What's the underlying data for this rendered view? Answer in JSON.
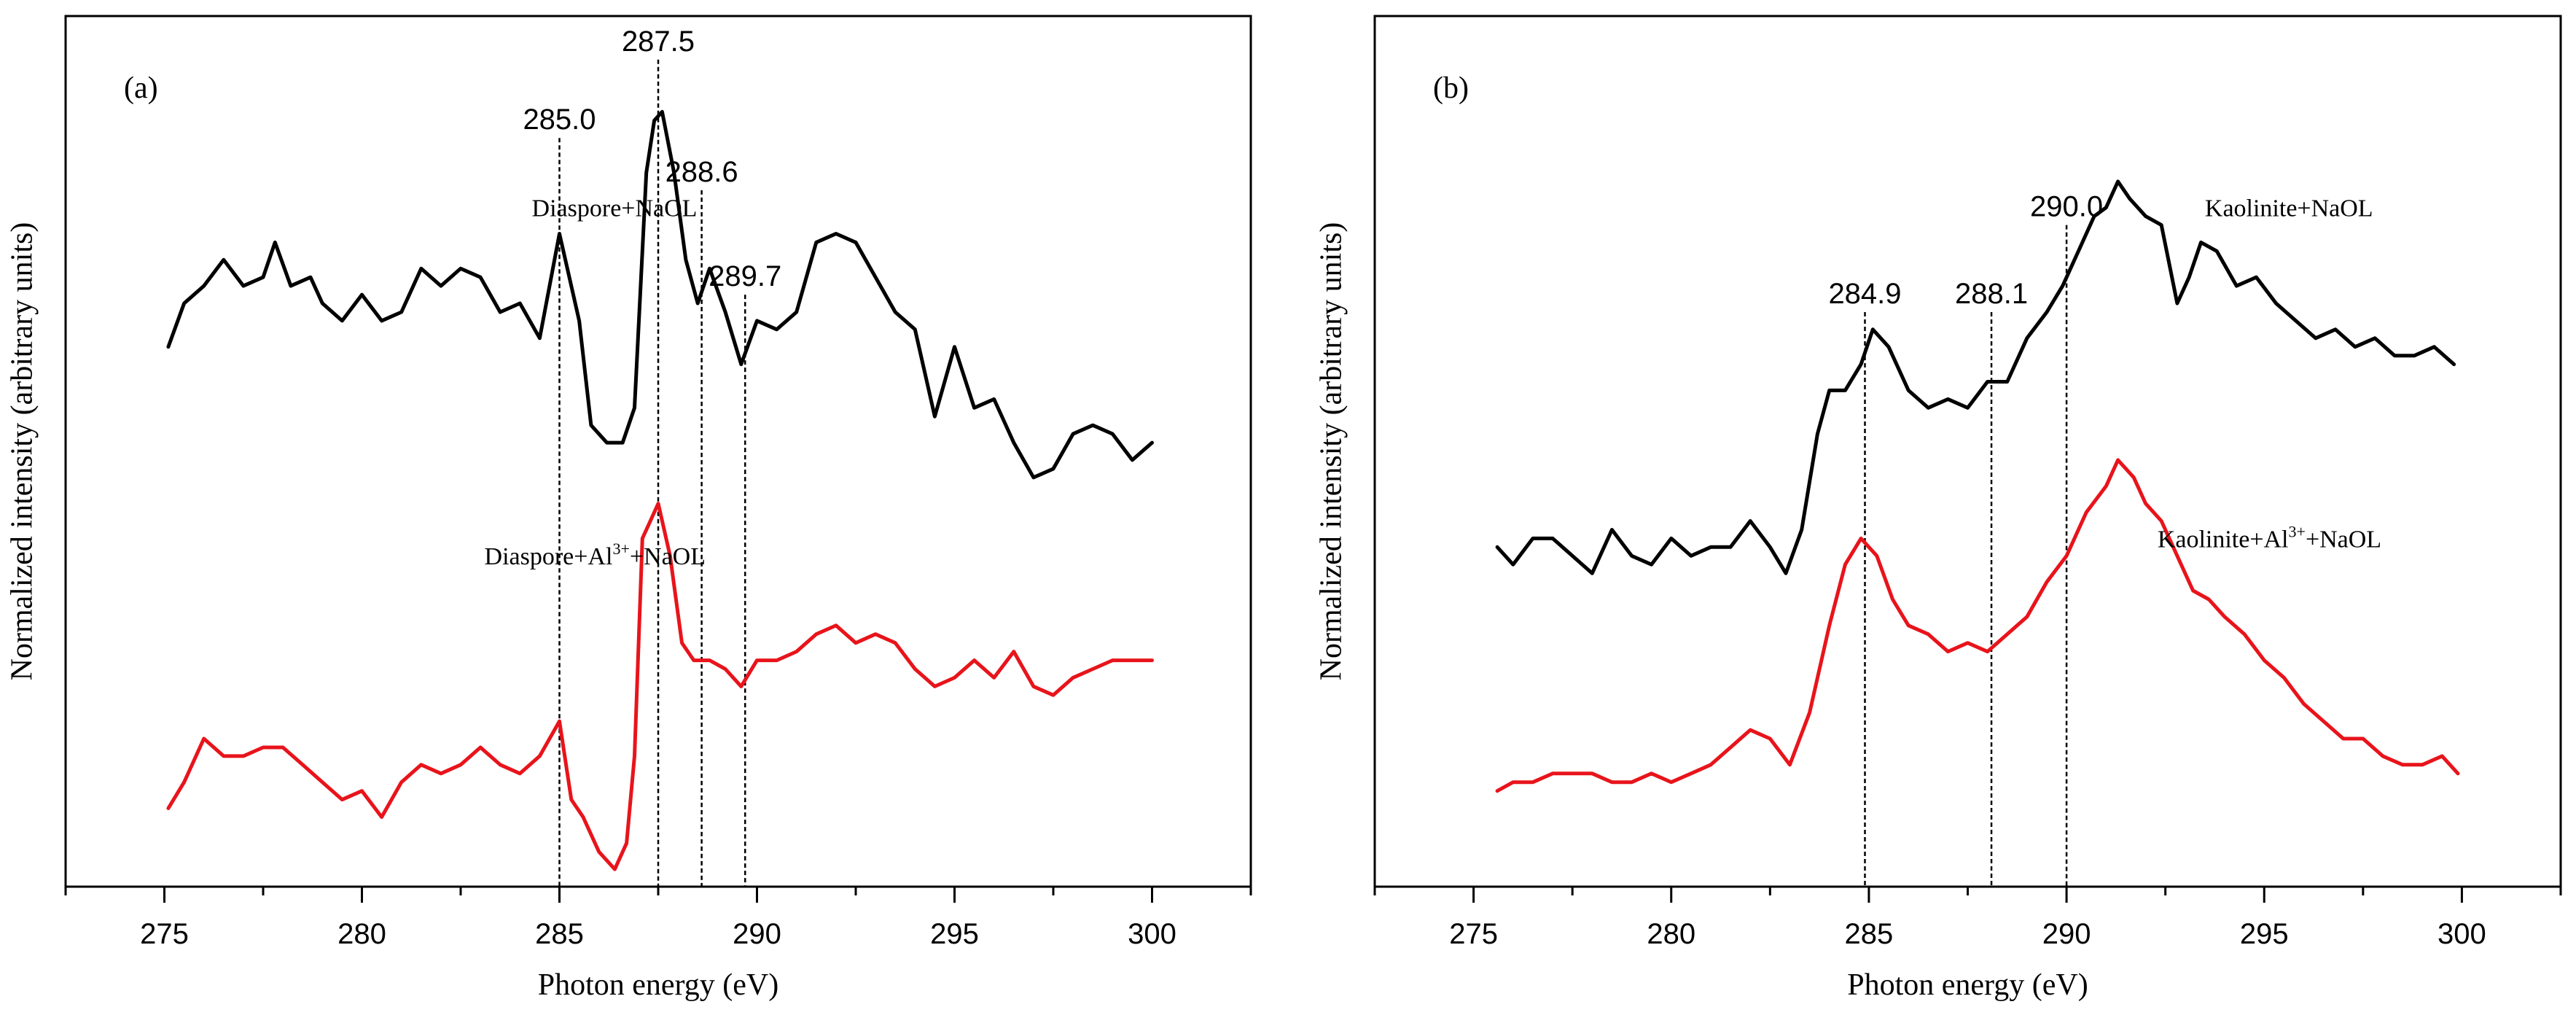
{
  "colors": {
    "black_series": "#000000",
    "red_series": "#e8141b"
  },
  "chart_data": [
    {
      "type": "line",
      "panel_label": "(a)",
      "xlabel": "Photon energy (eV)",
      "ylabel": "Normalized intensity (arbitrary units)",
      "xlim": [
        272.5,
        302.5
      ],
      "ylim": [
        0,
        100
      ],
      "x_ticks": [
        275,
        280,
        285,
        290,
        295,
        300
      ],
      "x_tick_labels": [
        "275",
        "280",
        "285",
        "290",
        "295",
        "300"
      ],
      "y_ticks_shown": false,
      "peaks": [
        {
          "x": 285.0,
          "label": "285.0",
          "label_y": 87
        },
        {
          "x": 287.5,
          "label": "287.5",
          "label_y": 96
        },
        {
          "x": 288.6,
          "label": "288.6",
          "label_y": 81
        },
        {
          "x": 289.7,
          "label": "289.7",
          "label_y": 69
        }
      ],
      "series": [
        {
          "name": "Diaspore+NaOL",
          "label_base": "Diaspore+NaOL",
          "label_sup": "",
          "label_tail": "",
          "label_pos": [
            284.3,
            77
          ],
          "color": "#000000",
          "x": [
            275.1,
            275.5,
            276,
            276.5,
            277,
            277.5,
            277.8,
            278.2,
            278.7,
            279,
            279.5,
            280,
            280.5,
            281,
            281.5,
            282,
            282.5,
            283,
            283.5,
            284,
            284.5,
            285,
            285.5,
            285.8,
            286.2,
            286.6,
            286.9,
            287.2,
            287.4,
            287.6,
            287.9,
            288.2,
            288.5,
            288.8,
            289.2,
            289.6,
            290,
            290.5,
            291,
            291.5,
            292,
            292.5,
            293,
            293.5,
            294,
            294.5,
            295,
            295.5,
            296,
            296.5,
            297,
            297.5,
            298,
            298.5,
            299,
            299.5,
            300
          ],
          "y": [
            62,
            67,
            69,
            72,
            69,
            70,
            74,
            69,
            70,
            67,
            65,
            68,
            65,
            66,
            71,
            69,
            71,
            70,
            66,
            67,
            63,
            75,
            65,
            53,
            51,
            51,
            55,
            82,
            88,
            89,
            82,
            72,
            67,
            71,
            66,
            60,
            65,
            64,
            66,
            74,
            75,
            74,
            70,
            66,
            64,
            54,
            62,
            55,
            56,
            51,
            47,
            48,
            52,
            53,
            52,
            49,
            51
          ]
        },
        {
          "name": "Diaspore+Al3+NaOL",
          "label_base": "Diaspore+Al",
          "label_sup": "3+",
          "label_tail": "+NaOL",
          "label_pos": [
            283.1,
            37
          ],
          "color": "#e8141b",
          "x": [
            275.1,
            275.5,
            276,
            276.5,
            277,
            277.5,
            278,
            278.5,
            279,
            279.5,
            280,
            280.5,
            281,
            281.5,
            282,
            282.5,
            283,
            283.5,
            284,
            284.5,
            285,
            285.3,
            285.6,
            286,
            286.4,
            286.7,
            286.9,
            287.1,
            287.3,
            287.5,
            287.8,
            288.1,
            288.4,
            288.8,
            289.2,
            289.6,
            290,
            290.5,
            291,
            291.5,
            292,
            292.5,
            293,
            293.5,
            294,
            294.5,
            295,
            295.5,
            296,
            296.5,
            297,
            297.5,
            298,
            298.5,
            299,
            299.5,
            300
          ],
          "y": [
            9,
            12,
            17,
            15,
            15,
            16,
            16,
            14,
            12,
            10,
            11,
            8,
            12,
            14,
            13,
            14,
            16,
            14,
            13,
            15,
            19,
            10,
            8,
            4,
            2,
            5,
            15,
            40,
            42,
            44,
            38,
            28,
            26,
            26,
            25,
            23,
            26,
            26,
            27,
            29,
            30,
            28,
            29,
            28,
            25,
            23,
            24,
            26,
            24,
            27,
            23,
            22,
            24,
            25,
            26,
            26,
            26
          ]
        }
      ]
    },
    {
      "type": "line",
      "panel_label": "(b)",
      "xlabel": "Photon energy (eV)",
      "ylabel": "Normalized intensity (arbitrary units)",
      "xlim": [
        272.5,
        302.5
      ],
      "ylim": [
        0,
        100
      ],
      "x_ticks": [
        275,
        280,
        285,
        290,
        295,
        300
      ],
      "x_tick_labels": [
        "275",
        "280",
        "285",
        "290",
        "295",
        "300"
      ],
      "y_ticks_shown": false,
      "peaks": [
        {
          "x": 284.9,
          "label": "284.9",
          "label_y": 67
        },
        {
          "x": 288.1,
          "label": "288.1",
          "label_y": 67
        },
        {
          "x": 290.0,
          "label": "290.0",
          "label_y": 77
        }
      ],
      "series": [
        {
          "name": "Kaolinite+NaOL",
          "label_base": "Kaolinite+NaOL",
          "label_sup": "",
          "label_tail": "",
          "label_pos": [
            293.5,
            77
          ],
          "color": "#000000",
          "x": [
            275.6,
            276,
            276.5,
            277,
            277.5,
            278,
            278.5,
            279,
            279.5,
            280,
            280.5,
            281,
            281.5,
            282,
            282.5,
            282.9,
            283.3,
            283.7,
            284,
            284.4,
            284.8,
            285.1,
            285.5,
            286,
            286.5,
            287,
            287.5,
            288,
            288.5,
            289,
            289.5,
            289.9,
            290.3,
            290.7,
            291,
            291.3,
            291.6,
            292,
            292.4,
            292.8,
            293.1,
            293.4,
            293.8,
            294.3,
            294.8,
            295.3,
            295.8,
            296.3,
            296.8,
            297.3,
            297.8,
            298.3,
            298.8,
            299.3,
            299.8
          ],
          "y": [
            39,
            37,
            40,
            40,
            38,
            36,
            41,
            38,
            37,
            40,
            38,
            39,
            39,
            42,
            39,
            36,
            41,
            52,
            57,
            57,
            60,
            64,
            62,
            57,
            55,
            56,
            55,
            58,
            58,
            63,
            66,
            69,
            73,
            77,
            78,
            81,
            79,
            77,
            76,
            67,
            70,
            74,
            73,
            69,
            70,
            67,
            65,
            63,
            64,
            62,
            63,
            61,
            61,
            62,
            60
          ]
        },
        {
          "name": "Kaolinite+Al3+NaOL",
          "label_base": "Kaolinite+Al",
          "label_sup": "3+",
          "label_tail": "+NaOL",
          "label_pos": [
            292.3,
            39
          ],
          "color": "#e8141b",
          "x": [
            275.6,
            276,
            276.5,
            277,
            277.5,
            278,
            278.5,
            279,
            279.5,
            280,
            280.5,
            281,
            281.5,
            282,
            282.5,
            283,
            283.5,
            284,
            284.4,
            284.8,
            285.2,
            285.6,
            286,
            286.5,
            287,
            287.5,
            288,
            288.5,
            289,
            289.5,
            290,
            290.5,
            291,
            291.3,
            291.7,
            292,
            292.4,
            292.8,
            293.2,
            293.6,
            294,
            294.5,
            295,
            295.5,
            296,
            296.5,
            297,
            297.5,
            298,
            298.5,
            299,
            299.5,
            299.9
          ],
          "y": [
            11,
            12,
            12,
            13,
            13,
            13,
            12,
            12,
            13,
            12,
            13,
            14,
            16,
            18,
            17,
            14,
            20,
            30,
            37,
            40,
            38,
            33,
            30,
            29,
            27,
            28,
            27,
            29,
            31,
            35,
            38,
            43,
            46,
            49,
            47,
            44,
            42,
            38,
            34,
            33,
            31,
            29,
            26,
            24,
            21,
            19,
            17,
            17,
            15,
            14,
            14,
            15,
            13
          ]
        }
      ]
    }
  ]
}
